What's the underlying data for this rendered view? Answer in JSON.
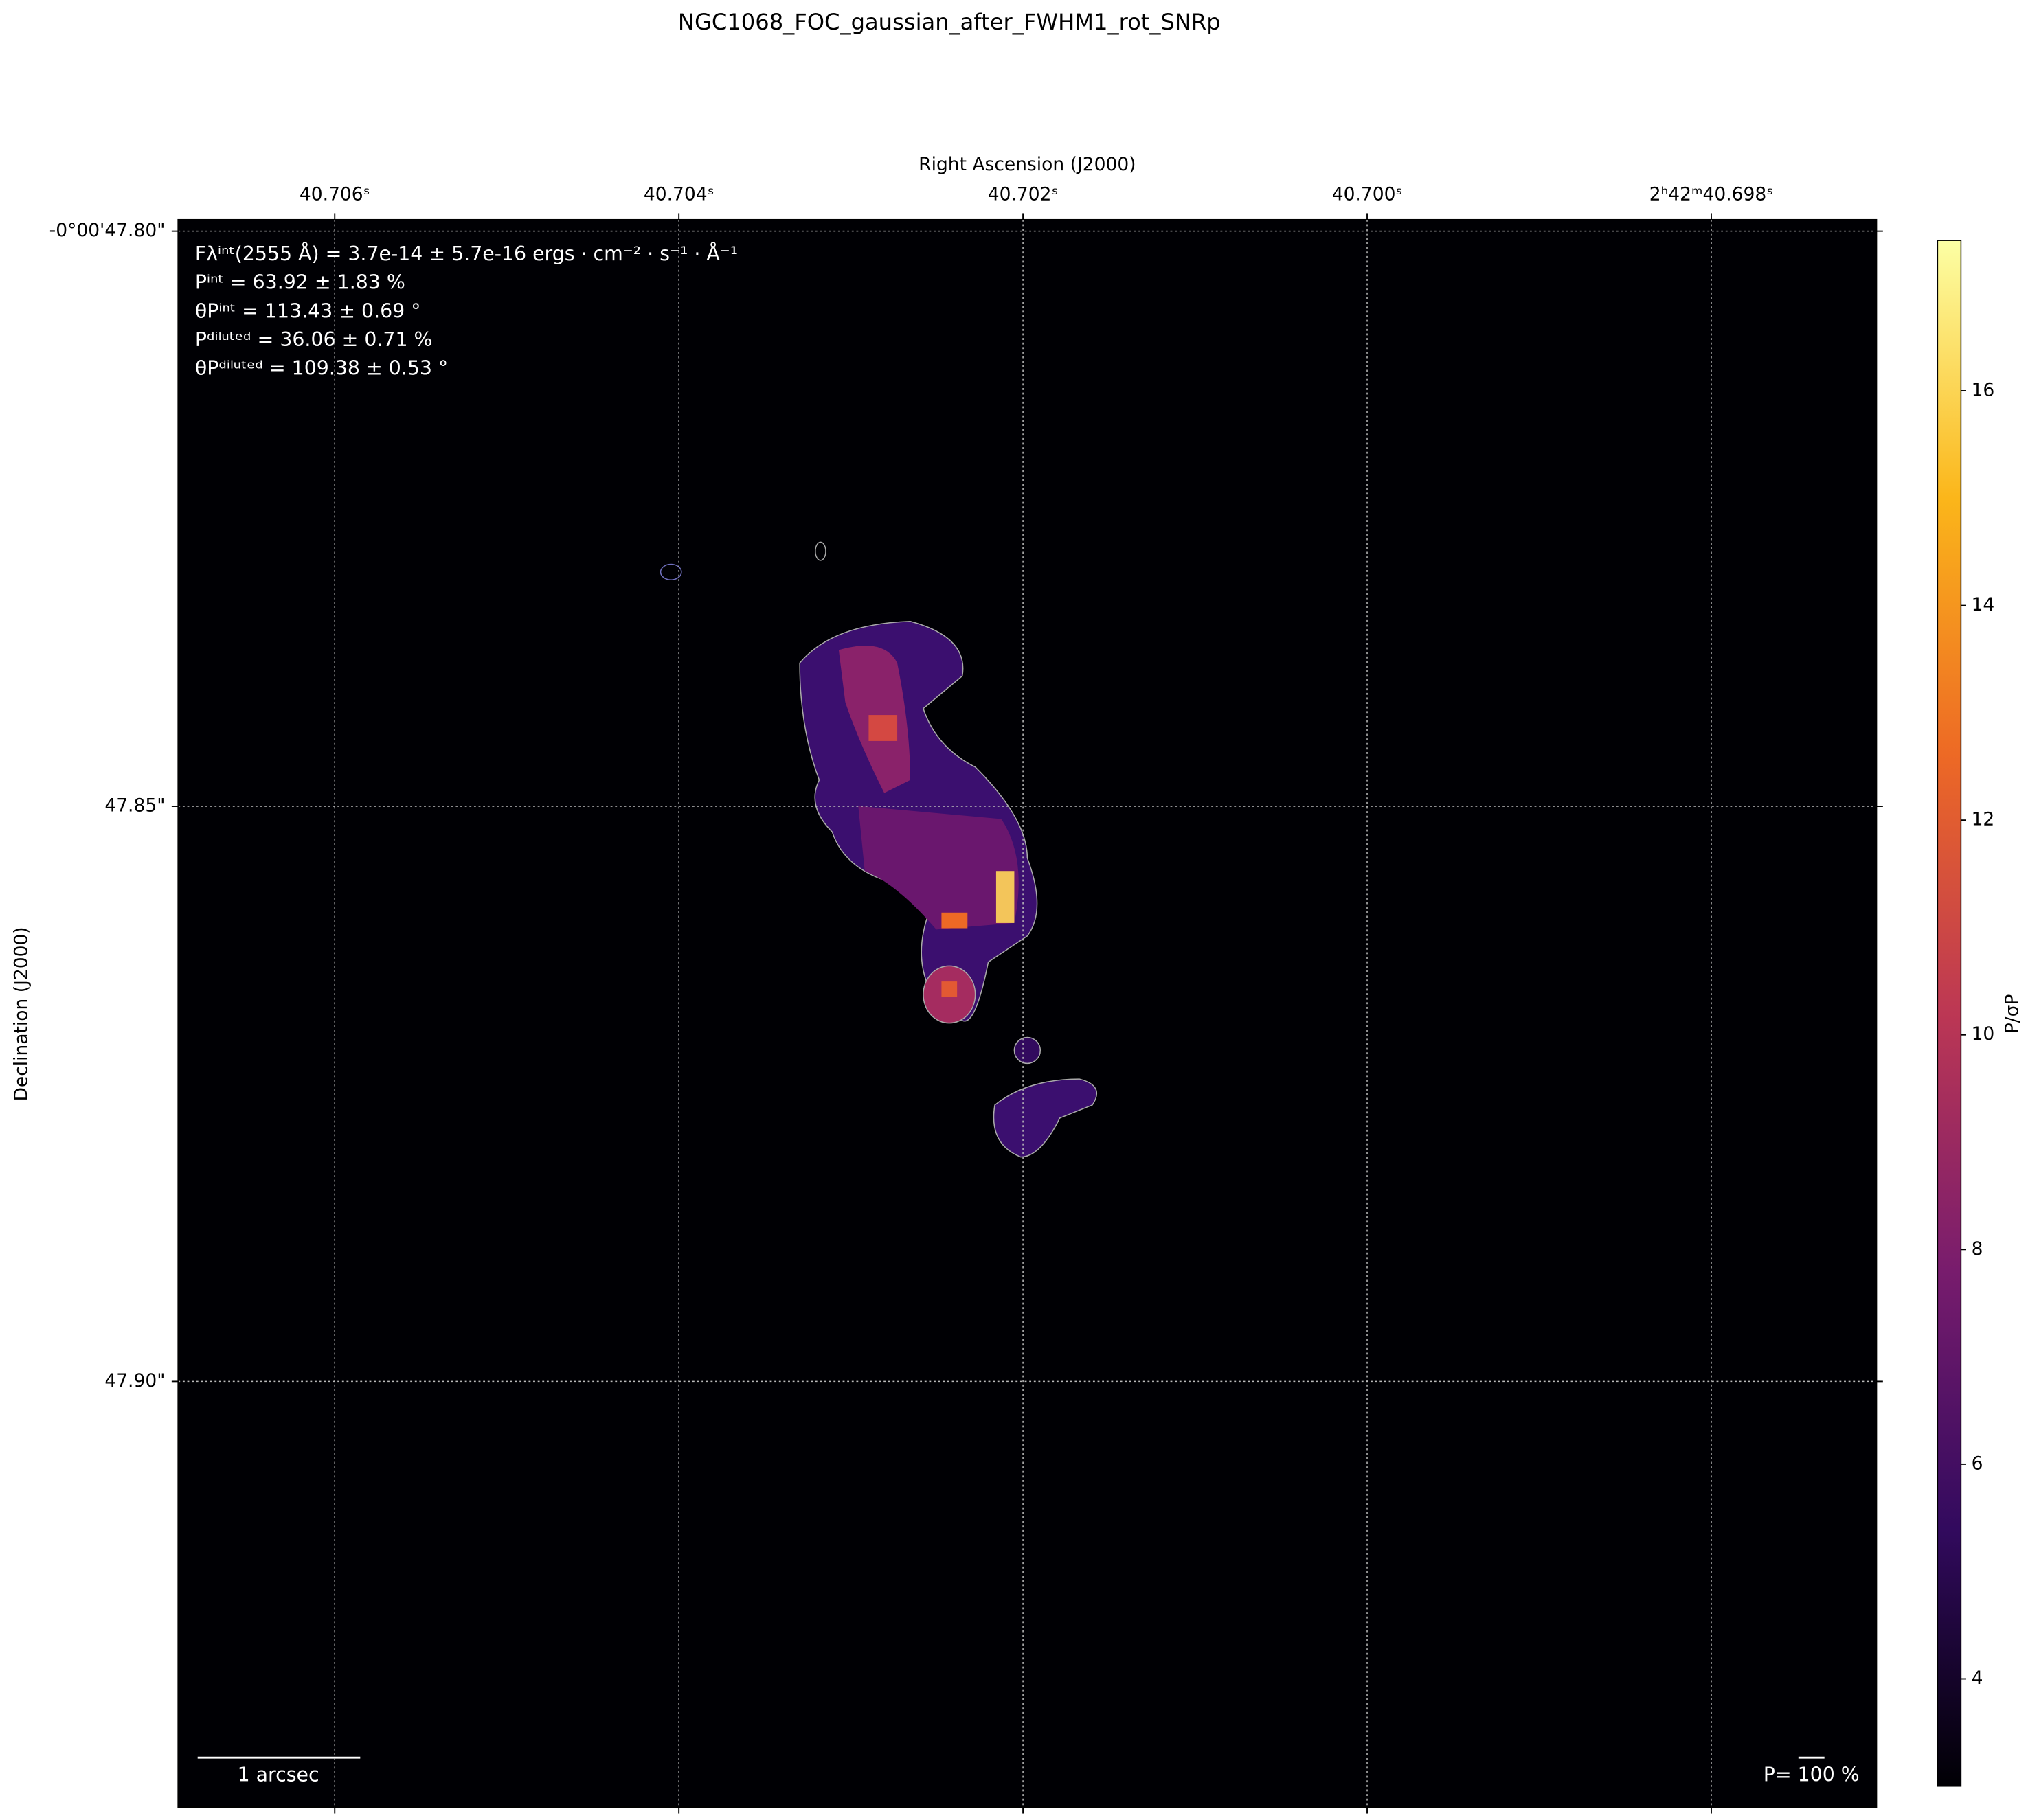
{
  "chart_data": {
    "type": "image",
    "title": "NGC1068_FOC_gaussian_after_FWHM1_rot_SNRp",
    "xlabel": "Right Ascension (J2000)",
    "ylabel": "Declination (J2000)",
    "xlim": [
      40.70691,
      40.69704
    ],
    "ylim": [
      47.799,
      47.937
    ],
    "xticks": [
      {
        "value": 40.706,
        "label": "40.706ˢ"
      },
      {
        "value": 40.704,
        "label": "40.704ˢ"
      },
      {
        "value": 40.702,
        "label": "40.702ˢ"
      },
      {
        "value": 40.7,
        "label": "40.700ˢ"
      },
      {
        "value": 40.698,
        "label": "2ʰ42ᵐ40.698ˢ"
      }
    ],
    "yticks": [
      {
        "value": 47.8,
        "label": "-0°00'47.80\""
      },
      {
        "value": 47.85,
        "label": "47.85\""
      },
      {
        "value": 47.9,
        "label": "47.90\""
      }
    ],
    "grid": true,
    "cmap": [
      "#000004",
      "#320a5e",
      "#781c6d",
      "#bc3754",
      "#ed6925",
      "#fbb61a",
      "#fcffa4"
    ],
    "colorbar_label": "P/σP",
    "clim": [
      3.0,
      17.4
    ],
    "cticks": [
      4,
      6,
      8,
      10,
      12,
      14,
      16
    ],
    "annotations": [
      "Fλⁱⁿᵗ(2555 Å) = 3.7e-14 ± 5.7e-16 ergs · cm⁻² · s⁻¹ · Å⁻¹",
      "Pⁱⁿᵗ = 63.92 ± 1.83 %",
      "θPⁱⁿᵗ = 113.43 ± 0.69 °",
      "Pᵈⁱˡᵘᵗᵉᵈ = 36.06 ± 0.71 %",
      "θPᵈⁱˡᵘᵗᵉᵈ = 109.38 ± 0.53 °"
    ],
    "scale_bar_label": "1 arcsec",
    "vector_scale_label": "P= 100 %"
  }
}
